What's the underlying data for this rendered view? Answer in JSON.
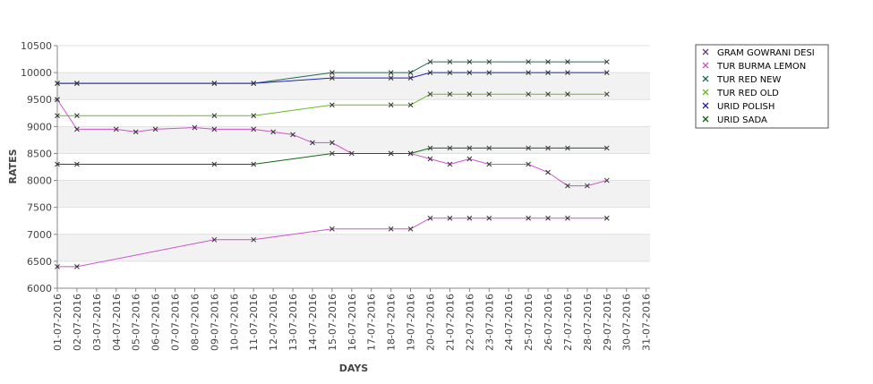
{
  "chart_data": {
    "type": "line",
    "xlabel": "DAYS",
    "ylabel": "RATES",
    "ylim": [
      6000,
      10500
    ],
    "yticks": [
      6000,
      6500,
      7000,
      7500,
      8000,
      8500,
      9000,
      9500,
      10000,
      10500
    ],
    "x_labels": [
      "01-07-2016",
      "02-07-2016",
      "03-07-2016",
      "04-07-2016",
      "05-07-2016",
      "06-07-2016",
      "07-07-2016",
      "08-07-2016",
      "09-07-2016",
      "10-07-2016",
      "11-07-2016",
      "12-07-2016",
      "13-07-2016",
      "14-07-2016",
      "15-07-2016",
      "16-07-2016",
      "17-07-2016",
      "18-07-2016",
      "19-07-2016",
      "20-07-2016",
      "21-07-2016",
      "22-07-2016",
      "23-07-2016",
      "24-07-2016",
      "25-07-2016",
      "26-07-2016",
      "27-07-2016",
      "28-07-2016",
      "29-07-2016",
      "30-07-2016",
      "31-07-2016"
    ],
    "legend_position": "right",
    "series": [
      {
        "name": "GRAM GOWRANI DESI",
        "color": "#6b3f7a",
        "points": [
          [
            1,
            9500
          ]
        ]
      },
      {
        "name": "TUR BURMA LEMON",
        "color": "#cc55cc",
        "points": [
          [
            1,
            9500
          ],
          [
            2,
            8950
          ],
          [
            4,
            8950
          ],
          [
            5,
            8900
          ],
          [
            6,
            8950
          ],
          [
            8,
            8980
          ],
          [
            9,
            8950
          ],
          [
            11,
            8950
          ],
          [
            12,
            8900
          ],
          [
            13,
            8850
          ],
          [
            14,
            8700
          ],
          [
            15,
            8700
          ],
          [
            16,
            8500
          ],
          [
            18,
            8500
          ],
          [
            19,
            8500
          ],
          [
            20,
            8400
          ],
          [
            21,
            8300
          ],
          [
            22,
            8400
          ],
          [
            23,
            8300
          ],
          [
            25,
            8300
          ],
          [
            26,
            8150
          ],
          [
            27,
            7900
          ],
          [
            28,
            7900
          ],
          [
            29,
            8000
          ]
        ]
      },
      {
        "name": "TUR RED NEW",
        "color": "#1e6b5a",
        "points": [
          [
            1,
            9800
          ],
          [
            2,
            9800
          ],
          [
            9,
            9800
          ],
          [
            11,
            9800
          ],
          [
            15,
            10000
          ],
          [
            18,
            10000
          ],
          [
            19,
            10000
          ],
          [
            20,
            10200
          ],
          [
            21,
            10200
          ],
          [
            22,
            10200
          ],
          [
            23,
            10200
          ],
          [
            25,
            10200
          ],
          [
            26,
            10200
          ],
          [
            27,
            10200
          ],
          [
            29,
            10200
          ]
        ]
      },
      {
        "name": "TUR RED OLD",
        "color": "#66bb22",
        "points": [
          [
            1,
            9200
          ],
          [
            2,
            9200
          ],
          [
            9,
            9200
          ],
          [
            11,
            9200
          ],
          [
            15,
            9400
          ],
          [
            18,
            9400
          ],
          [
            19,
            9400
          ],
          [
            20,
            9600
          ],
          [
            21,
            9600
          ],
          [
            22,
            9600
          ],
          [
            23,
            9600
          ],
          [
            25,
            9600
          ],
          [
            26,
            9600
          ],
          [
            27,
            9600
          ],
          [
            29,
            9600
          ]
        ]
      },
      {
        "name": "URID POLISH",
        "color": "#2222aa",
        "points": [
          [
            1,
            9800
          ],
          [
            2,
            9800
          ],
          [
            9,
            9800
          ],
          [
            11,
            9800
          ],
          [
            15,
            9900
          ],
          [
            18,
            9900
          ],
          [
            19,
            9900
          ],
          [
            20,
            10000
          ],
          [
            21,
            10000
          ],
          [
            22,
            10000
          ],
          [
            23,
            10000
          ],
          [
            25,
            10000
          ],
          [
            26,
            10000
          ],
          [
            27,
            10000
          ],
          [
            29,
            10000
          ]
        ]
      },
      {
        "name": "URID SADA",
        "color": "#116611",
        "points": [
          [
            1,
            8300
          ],
          [
            2,
            8300
          ],
          [
            9,
            8300
          ],
          [
            11,
            8300
          ],
          [
            15,
            8500
          ],
          [
            18,
            8500
          ],
          [
            19,
            8500
          ],
          [
            20,
            8600
          ],
          [
            21,
            8600
          ],
          [
            22,
            8600
          ],
          [
            23,
            8600
          ],
          [
            25,
            8600
          ],
          [
            26,
            8600
          ],
          [
            27,
            8600
          ],
          [
            29,
            8600
          ]
        ]
      },
      {
        "name": "",
        "color": "#cc55cc",
        "points": [
          [
            1,
            6400
          ],
          [
            2,
            6400
          ],
          [
            9,
            6900
          ],
          [
            11,
            6900
          ],
          [
            15,
            7100
          ],
          [
            18,
            7100
          ],
          [
            19,
            7100
          ],
          [
            20,
            7300
          ],
          [
            21,
            7300
          ],
          [
            22,
            7300
          ],
          [
            23,
            7300
          ],
          [
            25,
            7300
          ],
          [
            26,
            7300
          ],
          [
            27,
            7300
          ],
          [
            29,
            7300
          ]
        ]
      }
    ]
  }
}
